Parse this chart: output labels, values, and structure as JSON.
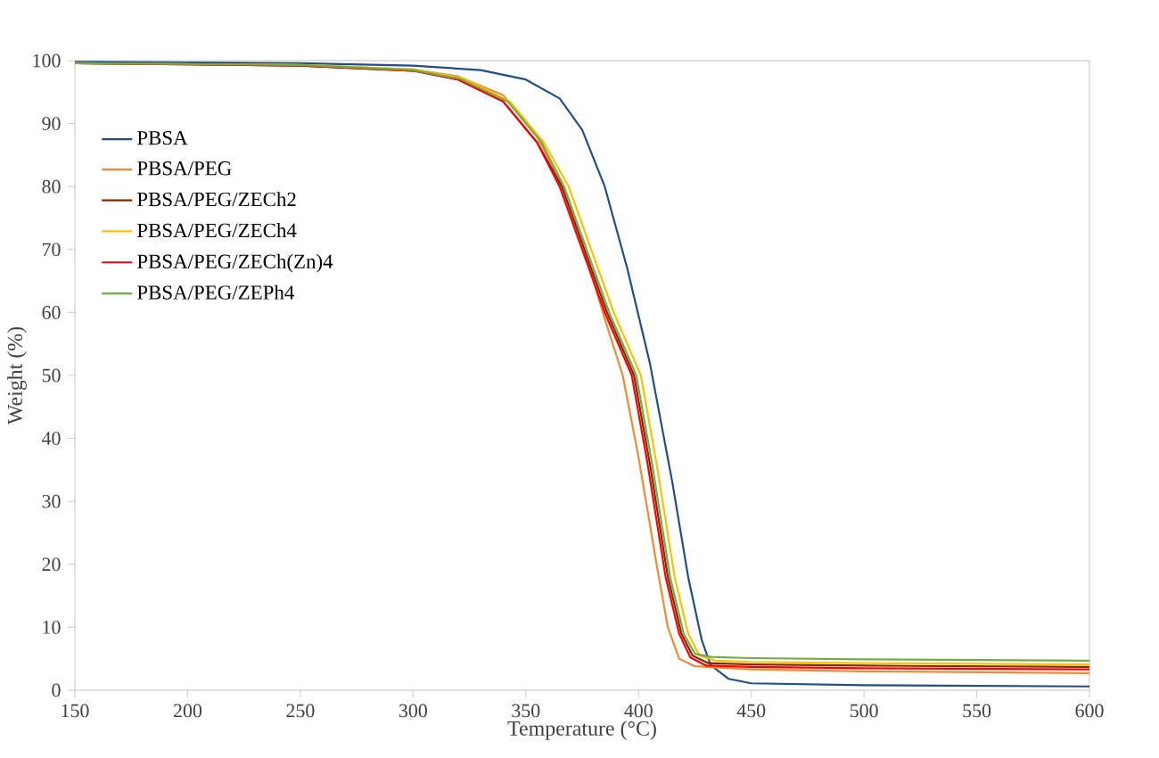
{
  "chart_data": {
    "type": "line",
    "xlabel": "Temperature (°C)",
    "ylabel": "Weight (%)",
    "xlim": [
      150,
      600
    ],
    "ylim": [
      0,
      100
    ],
    "xticks": [
      150,
      200,
      250,
      300,
      350,
      400,
      450,
      500,
      550,
      600
    ],
    "yticks": [
      0,
      10,
      20,
      30,
      40,
      50,
      60,
      70,
      80,
      90,
      100
    ],
    "legend": "top left",
    "line_style": "solid",
    "marker": "none",
    "grid": false,
    "series": [
      {
        "name": "PBSA",
        "color": "#1f4e8c",
        "x": [
          150,
          250,
          300,
          330,
          350,
          365,
          375,
          385,
          395,
          405,
          415,
          422,
          428,
          432,
          440,
          450,
          500,
          600
        ],
        "values": [
          99.8,
          99.6,
          99.2,
          98.5,
          97,
          94,
          89,
          80,
          67,
          52,
          33,
          18,
          8,
          4,
          1.8,
          1.1,
          0.8,
          0.6
        ]
      },
      {
        "name": "PBSA/PEG",
        "color": "#f28a30",
        "x": [
          150,
          250,
          300,
          320,
          340,
          355,
          365,
          375,
          385,
          393,
          400,
          408,
          413,
          418,
          425,
          450,
          500,
          600
        ],
        "values": [
          99.6,
          99.3,
          98.6,
          97.5,
          94.5,
          88,
          81,
          71,
          59,
          50,
          37,
          20,
          10,
          5,
          3.8,
          3.3,
          3,
          2.7
        ]
      },
      {
        "name": "PBSA/PEG/ZECh2",
        "color": "#7b2c00",
        "x": [
          150,
          250,
          300,
          320,
          340,
          355,
          366,
          376,
          386,
          398,
          405,
          413,
          419,
          424,
          431,
          450,
          500,
          600
        ],
        "values": [
          99.6,
          99.2,
          98.4,
          97,
          93.5,
          87,
          80,
          70,
          60,
          50,
          36,
          18,
          9,
          5.5,
          4.3,
          4.1,
          3.9,
          3.7
        ]
      },
      {
        "name": "PBSA/PEG/ZECh4",
        "color": "#ffc000",
        "x": [
          150,
          250,
          300,
          322,
          343,
          358,
          369,
          379,
          389,
          401,
          408,
          416,
          422,
          427,
          434,
          450,
          500,
          600
        ],
        "values": [
          99.6,
          99.3,
          98.6,
          97.2,
          93.5,
          87,
          80,
          70,
          60,
          50,
          36,
          18,
          9,
          5.5,
          4.7,
          4.5,
          4.3,
          4.1
        ]
      },
      {
        "name": "PBSA/PEG/ZECh(Zn)4",
        "color": "#ff0000",
        "x": [
          150,
          250,
          300,
          320,
          340,
          355,
          365,
          375,
          385,
          397,
          404,
          412,
          418,
          423,
          430,
          450,
          500,
          600
        ],
        "values": [
          99.6,
          99.2,
          98.4,
          97,
          93.5,
          87,
          80,
          70,
          60,
          50,
          36,
          18,
          9,
          5.2,
          3.9,
          3.7,
          3.5,
          3.3
        ]
      },
      {
        "name": "PBSA/PEG/ZEPh4",
        "color": "#70ad47",
        "x": [
          150,
          250,
          300,
          321,
          342,
          357,
          367,
          377,
          387,
          399,
          406,
          414,
          420,
          425,
          432,
          450,
          500,
          600
        ],
        "values": [
          99.6,
          99.3,
          98.5,
          97.1,
          93.5,
          87,
          80,
          70,
          60,
          50,
          36,
          18,
          9,
          5.8,
          5.3,
          5.1,
          4.9,
          4.7
        ]
      }
    ]
  }
}
